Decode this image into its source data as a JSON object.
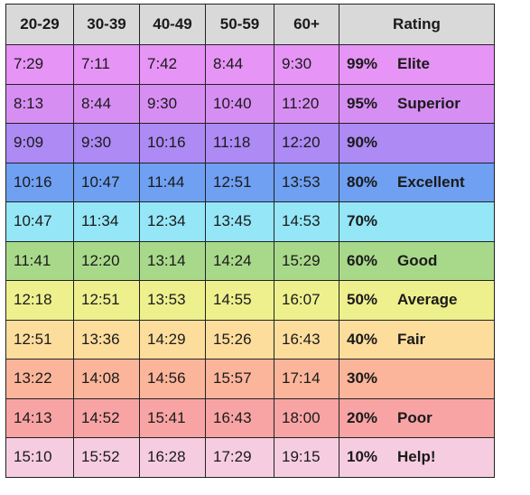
{
  "headers": [
    "20-29",
    "30-39",
    "40-49",
    "50-59",
    "60+",
    "Rating"
  ],
  "rows": [
    {
      "times": [
        "7:29",
        "7:11",
        "7:42",
        "8:44",
        "9:30"
      ],
      "percent": "99%",
      "label": "Elite",
      "color": "#e694f5"
    },
    {
      "times": [
        "8:13",
        "8:44",
        "9:30",
        "10:40",
        "11:20"
      ],
      "percent": "95%",
      "label": "Superior",
      "color": "#d78ef3"
    },
    {
      "times": [
        "9:09",
        "9:30",
        "10:16",
        "11:18",
        "12:20"
      ],
      "percent": "90%",
      "label": "",
      "color": "#ad8af4"
    },
    {
      "times": [
        "10:16",
        "10:47",
        "11:44",
        "12:51",
        "13:53"
      ],
      "percent": "80%",
      "label": "Excellent",
      "color": "#6fa0f2"
    },
    {
      "times": [
        "10:47",
        "11:34",
        "12:34",
        "13:45",
        "14:53"
      ],
      "percent": "70%",
      "label": "",
      "color": "#95e6f7"
    },
    {
      "times": [
        "11:41",
        "12:20",
        "13:14",
        "14:24",
        "15:29"
      ],
      "percent": "60%",
      "label": "Good",
      "color": "#a8d98a"
    },
    {
      "times": [
        "12:18",
        "12:51",
        "13:53",
        "14:55",
        "16:07"
      ],
      "percent": "50%",
      "label": "Average",
      "color": "#eef08e"
    },
    {
      "times": [
        "12:51",
        "13:36",
        "14:29",
        "15:26",
        "16:43"
      ],
      "percent": "40%",
      "label": "Fair",
      "color": "#fddd9c"
    },
    {
      "times": [
        "13:22",
        "14:08",
        "14:56",
        "15:57",
        "17:14"
      ],
      "percent": "30%",
      "label": "",
      "color": "#fbb59a"
    },
    {
      "times": [
        "14:13",
        "14:52",
        "15:41",
        "16:43",
        "18:00"
      ],
      "percent": "20%",
      "label": "Poor",
      "color": "#f9a4a4"
    },
    {
      "times": [
        "15:10",
        "15:52",
        "16:28",
        "17:29",
        "19:15"
      ],
      "percent": "10%",
      "label": "Help!",
      "color": "#f6cde0"
    }
  ]
}
